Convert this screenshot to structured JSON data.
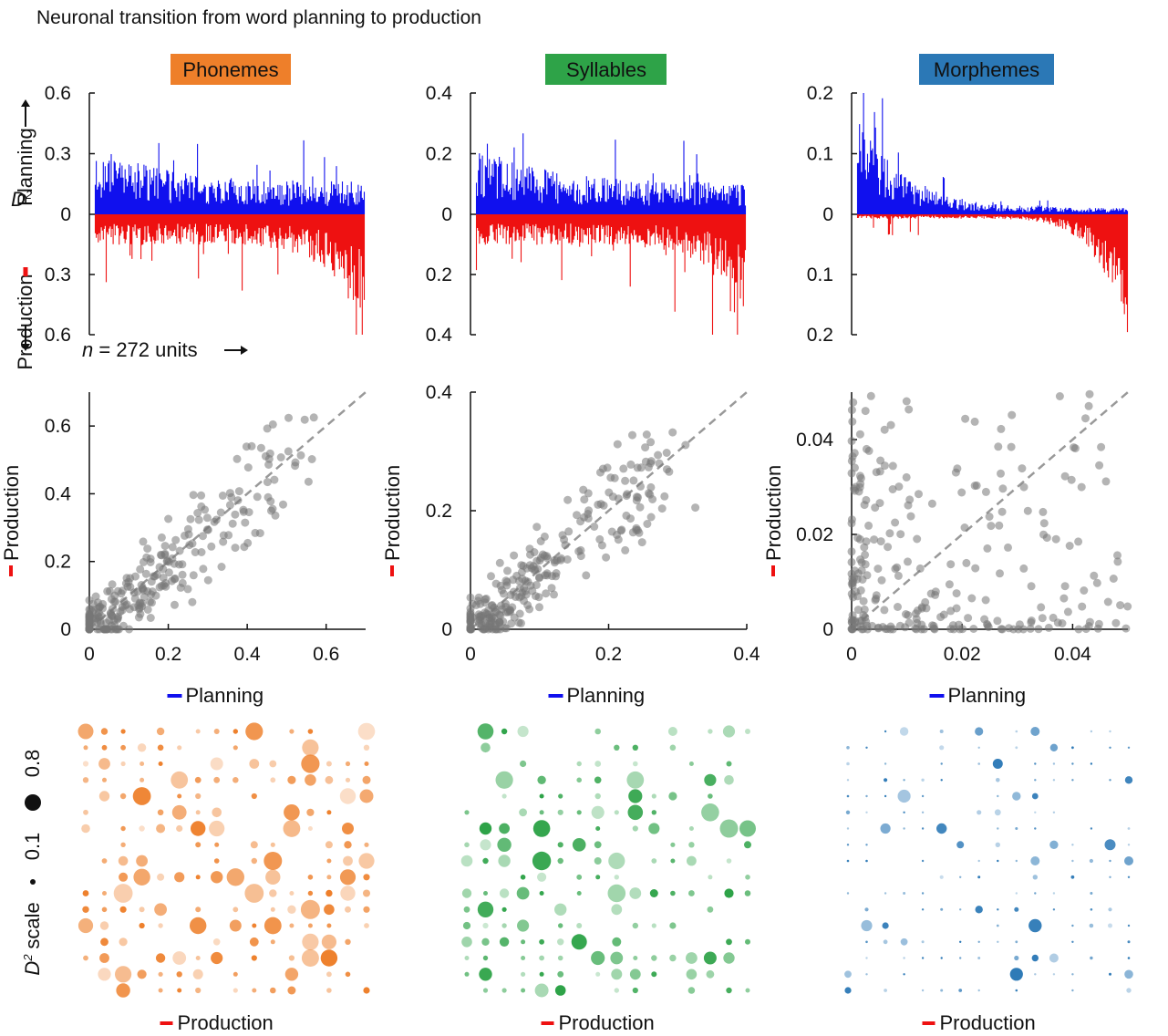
{
  "title": "Neuronal transition from word planning to production",
  "colors": {
    "planning": "#1010ee",
    "production": "#ee1111",
    "dots": "#777777",
    "diag": "#999999",
    "phonemes": "#ee7f2a",
    "syllables": "#2ea348",
    "morphemes": "#2b78b6"
  },
  "panels": [
    {
      "key": "phonemes",
      "header": "Phonemes",
      "color": "#ee7f2a",
      "bar_ticks": [
        "0.6",
        "0.3",
        "0",
        "0.3",
        "0.6"
      ],
      "bar_max": 0.6,
      "scatter_ticks": [
        "0",
        "0.2",
        "0.4",
        "0.6"
      ],
      "scatter_values": [
        0,
        0.2,
        0.4,
        0.6
      ],
      "scatter_max": 0.7
    },
    {
      "key": "syllables",
      "header": "Syllables",
      "color": "#2ea348",
      "bar_ticks": [
        "0.4",
        "0.2",
        "0",
        "0.2",
        "0.4"
      ],
      "bar_max": 0.4,
      "scatter_ticks": [
        "0",
        "0.2",
        "0.4"
      ],
      "scatter_values": [
        0,
        0.2,
        0.4
      ],
      "scatter_max": 0.4
    },
    {
      "key": "morphemes",
      "header": "Morphemes",
      "color": "#2b78b6",
      "bar_ticks": [
        "0.2",
        "0.1",
        "0",
        "0.1",
        "0.2"
      ],
      "bar_max": 0.2,
      "scatter_ticks": [
        "0",
        "0.02",
        "0.04"
      ],
      "scatter_values": [
        0,
        0.02,
        0.04
      ],
      "scatter_max": 0.05
    }
  ],
  "bar_axis": {
    "planning": "Planning",
    "production": "Production",
    "d2": "D",
    "d2_sup": "2",
    "n_label": "n",
    "n_text": " = 272 units"
  },
  "scatter_axis": {
    "xlabel": "Planning",
    "ylabel": "Production"
  },
  "grid_axis": {
    "xlabel": "Production",
    "scale_label": "scale",
    "scale_d": "D",
    "scale_sup": "2",
    "scale_small": "0.1",
    "scale_big": "0.8"
  },
  "chart_data": [
    {
      "type": "bar",
      "title": "Phonemes",
      "n_units": 272,
      "series": [
        {
          "name": "Planning",
          "direction": "up"
        },
        {
          "name": "Production",
          "direction": "down"
        }
      ],
      "ylim": [
        -0.6,
        0.6
      ],
      "note": "per-unit D2 values sorted along x; production tail rises at right"
    },
    {
      "type": "bar",
      "title": "Syllables",
      "n_units": 272,
      "ylim": [
        -0.4,
        0.4
      ]
    },
    {
      "type": "bar",
      "title": "Morphemes",
      "n_units": 272,
      "ylim": [
        -0.2,
        0.2
      ]
    },
    {
      "type": "scatter",
      "title": "Phonemes",
      "xlabel": "Planning",
      "ylabel": "Production",
      "xlim": [
        0,
        0.7
      ],
      "ylim": [
        0,
        0.7
      ],
      "diagonal": true
    },
    {
      "type": "scatter",
      "title": "Syllables",
      "xlabel": "Planning",
      "ylabel": "Production",
      "xlim": [
        0,
        0.4
      ],
      "ylim": [
        0,
        0.4
      ],
      "diagonal": true
    },
    {
      "type": "scatter",
      "title": "Morphemes",
      "xlabel": "Planning",
      "ylabel": "Production",
      "xlim": [
        0,
        0.05
      ],
      "ylim": [
        0,
        0.05
      ],
      "diagonal": true
    },
    {
      "type": "heatmap",
      "title": "Phonemes",
      "xlabel": "Production",
      "rows": 17,
      "cols": 16
    },
    {
      "type": "heatmap",
      "title": "Syllables",
      "xlabel": "Production",
      "rows": 17,
      "cols": 16
    },
    {
      "type": "heatmap",
      "title": "Morphemes",
      "xlabel": "Production",
      "rows": 17,
      "cols": 16
    }
  ]
}
